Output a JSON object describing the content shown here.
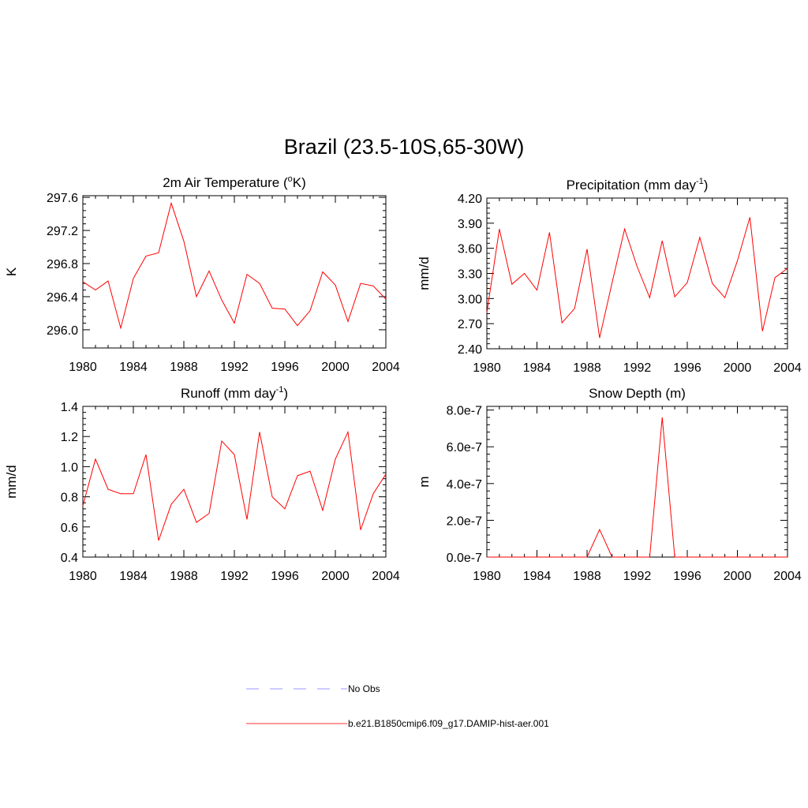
{
  "figure": {
    "title": "Brazil (23.5-10S,65-30W)"
  },
  "legend": [
    {
      "label": "No Obs",
      "color": "#9999ff",
      "style": "dashed"
    },
    {
      "label": "b.e21.B1850cmip6.f09_g17.DAMIP-hist-aer.001",
      "color": "#ff3333",
      "style": "solid"
    }
  ],
  "chart_data": [
    {
      "type": "line",
      "title": "2m Air Temperature (°K)",
      "title_parts": {
        "pre": "2m Air Temperature (",
        "sup": "o",
        "post": "K)"
      },
      "xlabel": "",
      "ylabel": "K",
      "xlim": [
        1980,
        2004
      ],
      "ylim": [
        295.78,
        297.62
      ],
      "xticks": [
        1980,
        1984,
        1988,
        1992,
        1996,
        2000,
        2004
      ],
      "xtick_labels": [
        "1980",
        "1984",
        "1988",
        "1992",
        "1996",
        "2000",
        "2004"
      ],
      "yticks": [
        296.0,
        296.4,
        296.8,
        297.2,
        297.6
      ],
      "ytick_labels": [
        "296.0",
        "296.4",
        "296.8",
        "297.2",
        "297.6"
      ],
      "grid": false,
      "series": [
        {
          "color": "#ff0000",
          "x": [
            1980,
            1981,
            1982,
            1983,
            1984,
            1985,
            1986,
            1987,
            1988,
            1989,
            1990,
            1991,
            1992,
            1993,
            1994,
            1995,
            1996,
            1997,
            1998,
            1999,
            2000,
            2001,
            2002,
            2003,
            2004
          ],
          "values": [
            296.58,
            296.48,
            296.59,
            296.02,
            296.62,
            296.89,
            296.93,
            297.53,
            297.07,
            296.4,
            296.71,
            296.36,
            296.08,
            296.67,
            296.56,
            296.26,
            296.25,
            296.05,
            296.23,
            296.7,
            296.54,
            296.1,
            296.56,
            296.53,
            296.37
          ]
        }
      ]
    },
    {
      "type": "line",
      "title": "Precipitation (mm day-1)",
      "title_parts": {
        "pre": "Precipitation (mm day",
        "sup": "-1",
        "post": ")"
      },
      "xlabel": "",
      "ylabel": "mm/d",
      "xlim": [
        1980,
        2004
      ],
      "ylim": [
        2.4,
        4.2
      ],
      "xticks": [
        1980,
        1984,
        1988,
        1992,
        1996,
        2000,
        2004
      ],
      "xtick_labels": [
        "1980",
        "1984",
        "1988",
        "1992",
        "1996",
        "2000",
        "2004"
      ],
      "yticks": [
        2.4,
        2.7,
        3.0,
        3.3,
        3.6,
        3.9,
        4.2
      ],
      "ytick_labels": [
        "2.40",
        "2.70",
        "3.00",
        "3.30",
        "3.60",
        "3.90",
        "4.20"
      ],
      "grid": false,
      "series": [
        {
          "color": "#ff0000",
          "x": [
            1980,
            1981,
            1982,
            1983,
            1984,
            1985,
            1986,
            1987,
            1988,
            1989,
            1990,
            1991,
            1992,
            1993,
            1994,
            1995,
            1996,
            1997,
            1998,
            1999,
            2000,
            2001,
            2002,
            2003,
            2004
          ],
          "values": [
            2.83,
            3.83,
            3.17,
            3.3,
            3.1,
            3.79,
            2.71,
            2.88,
            3.59,
            2.53,
            3.19,
            3.83,
            3.38,
            3.01,
            3.69,
            3.02,
            3.19,
            3.73,
            3.18,
            3.01,
            3.45,
            3.97,
            2.61,
            3.25,
            3.36
          ]
        }
      ]
    },
    {
      "type": "line",
      "title": "Runoff (mm day-1)",
      "title_parts": {
        "pre": "Runoff (mm day",
        "sup": "-1",
        "post": ")"
      },
      "xlabel": "",
      "ylabel": "mm/d",
      "xlim": [
        1980,
        2004
      ],
      "ylim": [
        0.4,
        1.4
      ],
      "xticks": [
        1980,
        1984,
        1988,
        1992,
        1996,
        2000,
        2004
      ],
      "xtick_labels": [
        "1980",
        "1984",
        "1988",
        "1992",
        "1996",
        "2000",
        "2004"
      ],
      "yticks": [
        0.4,
        0.6,
        0.8,
        1.0,
        1.2,
        1.4
      ],
      "ytick_labels": [
        "0.4",
        "0.6",
        "0.8",
        "1.0",
        "1.2",
        "1.4"
      ],
      "grid": false,
      "series": [
        {
          "color": "#ff0000",
          "x": [
            1980,
            1981,
            1982,
            1983,
            1984,
            1985,
            1986,
            1987,
            1988,
            1989,
            1990,
            1991,
            1992,
            1993,
            1994,
            1995,
            1996,
            1997,
            1998,
            1999,
            2000,
            2001,
            2002,
            2003,
            2004
          ],
          "values": [
            0.74,
            1.05,
            0.85,
            0.82,
            0.82,
            1.08,
            0.51,
            0.75,
            0.85,
            0.63,
            0.69,
            1.17,
            1.08,
            0.65,
            1.23,
            0.8,
            0.72,
            0.94,
            0.97,
            0.71,
            1.05,
            1.23,
            0.58,
            0.82,
            0.95
          ]
        }
      ]
    },
    {
      "type": "line",
      "title": "Snow Depth (m)",
      "title_parts": {
        "pre": "Snow Depth (m)",
        "sup": "",
        "post": ""
      },
      "xlabel": "",
      "ylabel": "m",
      "xlim": [
        1980,
        2004
      ],
      "ylim": [
        0,
        8.2e-07
      ],
      "xticks": [
        1980,
        1984,
        1988,
        1992,
        1996,
        2000,
        2004
      ],
      "xtick_labels": [
        "1980",
        "1984",
        "1988",
        "1992",
        "1996",
        "2000",
        "2004"
      ],
      "yticks": [
        0,
        2e-07,
        4e-07,
        6e-07,
        8e-07
      ],
      "ytick_labels": [
        "0.0e-7",
        "2.0e-7",
        "4.0e-7",
        "6.0e-7",
        "8.0e-7"
      ],
      "grid": false,
      "series": [
        {
          "color": "#ff0000",
          "x": [
            1980,
            1981,
            1982,
            1983,
            1984,
            1985,
            1986,
            1987,
            1988,
            1989,
            1990,
            1991,
            1992,
            1993,
            1994,
            1995,
            1996,
            1997,
            1998,
            1999,
            2000,
            2001,
            2002,
            2003,
            2004
          ],
          "values": [
            0,
            0,
            0,
            0,
            0,
            0,
            0,
            0,
            0,
            1.5e-07,
            0,
            0,
            0,
            0,
            7.6e-07,
            0,
            0,
            0,
            0,
            0,
            0,
            0,
            0,
            0,
            0
          ]
        }
      ]
    }
  ]
}
